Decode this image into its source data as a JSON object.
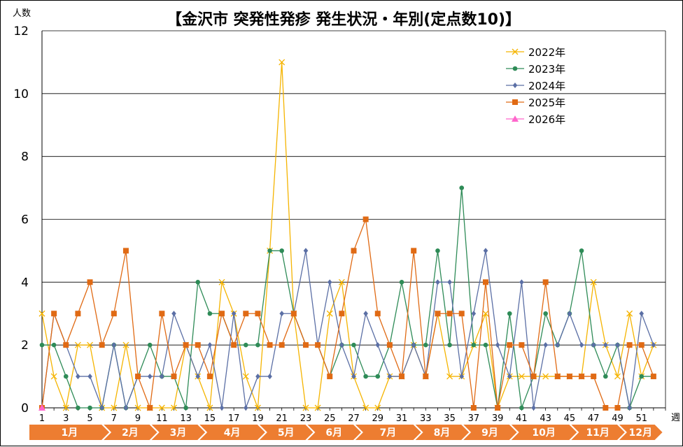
{
  "chart_data": {
    "type": "line",
    "title": "【金沢市 突発性発疹 発生状況・年別(定点数10)】",
    "ylabel": "人数",
    "xlabel": "週",
    "ylim": [
      0,
      12
    ],
    "yticks": [
      0,
      2,
      4,
      6,
      8,
      10,
      12
    ],
    "xlim": [
      1,
      53
    ],
    "xticks": [
      1,
      3,
      5,
      7,
      9,
      11,
      13,
      15,
      17,
      19,
      21,
      23,
      25,
      27,
      29,
      31,
      33,
      35,
      37,
      39,
      41,
      43,
      45,
      47,
      49,
      51
    ],
    "months": [
      "1月",
      "2月",
      "3月",
      "4月",
      "5月",
      "6月",
      "7月",
      "8月",
      "9月",
      "10月",
      "11月",
      "12月"
    ],
    "month_color": "#ED7D31",
    "grid": "horizontal",
    "legend_position": "top-right",
    "series": [
      {
        "name": "2022年",
        "color": "#F5B400",
        "marker": "x",
        "values": [
          3,
          1,
          0,
          2,
          2,
          0,
          0,
          2,
          0,
          0,
          0,
          0,
          2,
          1,
          0,
          4,
          3,
          1,
          0,
          5,
          11,
          3,
          0,
          0,
          3,
          4,
          1,
          0,
          0,
          1,
          1,
          2,
          1,
          3,
          1,
          1,
          2,
          3,
          0,
          1,
          1,
          1,
          1,
          1,
          1,
          1,
          4,
          2,
          1,
          3,
          1,
          2
        ]
      },
      {
        "name": "2023年",
        "color": "#2E8B57",
        "marker": "circle",
        "values": [
          2,
          2,
          1,
          0,
          0,
          0,
          2,
          0,
          1,
          2,
          1,
          1,
          0,
          4,
          3,
          3,
          2,
          2,
          2,
          5,
          5,
          3,
          2,
          2,
          1,
          2,
          2,
          1,
          1,
          2,
          4,
          2,
          2,
          5,
          2,
          7,
          2,
          2,
          0,
          3,
          0,
          1,
          3,
          2,
          3,
          5,
          2,
          1,
          2,
          0,
          1,
          1
        ]
      },
      {
        "name": "2024年",
        "color": "#5B6FA5",
        "marker": "diamond",
        "values": [
          0,
          3,
          2,
          1,
          1,
          0,
          2,
          0,
          1,
          1,
          1,
          3,
          2,
          1,
          2,
          0,
          3,
          0,
          1,
          1,
          3,
          3,
          5,
          2,
          4,
          2,
          1,
          3,
          2,
          1,
          1,
          2,
          1,
          4,
          4,
          1,
          3,
          5,
          2,
          1,
          4,
          0,
          2,
          2,
          3,
          2,
          2,
          2,
          2,
          0,
          3,
          2
        ]
      },
      {
        "name": "2025年",
        "color": "#E06A14",
        "marker": "square",
        "values": [
          0,
          3,
          2,
          3,
          4,
          2,
          3,
          5,
          1,
          0,
          3,
          1,
          2,
          2,
          1,
          3,
          2,
          3,
          3,
          2,
          2,
          3,
          2,
          2,
          1,
          3,
          5,
          6,
          3,
          2,
          1,
          5,
          1,
          3,
          3,
          3,
          0,
          4,
          0,
          2,
          2,
          1,
          4,
          1,
          1,
          1,
          1,
          0,
          0,
          2,
          2,
          1
        ]
      },
      {
        "name": "2026年",
        "color": "#FF66CC",
        "marker": "triangle",
        "values": [
          0
        ]
      }
    ]
  }
}
